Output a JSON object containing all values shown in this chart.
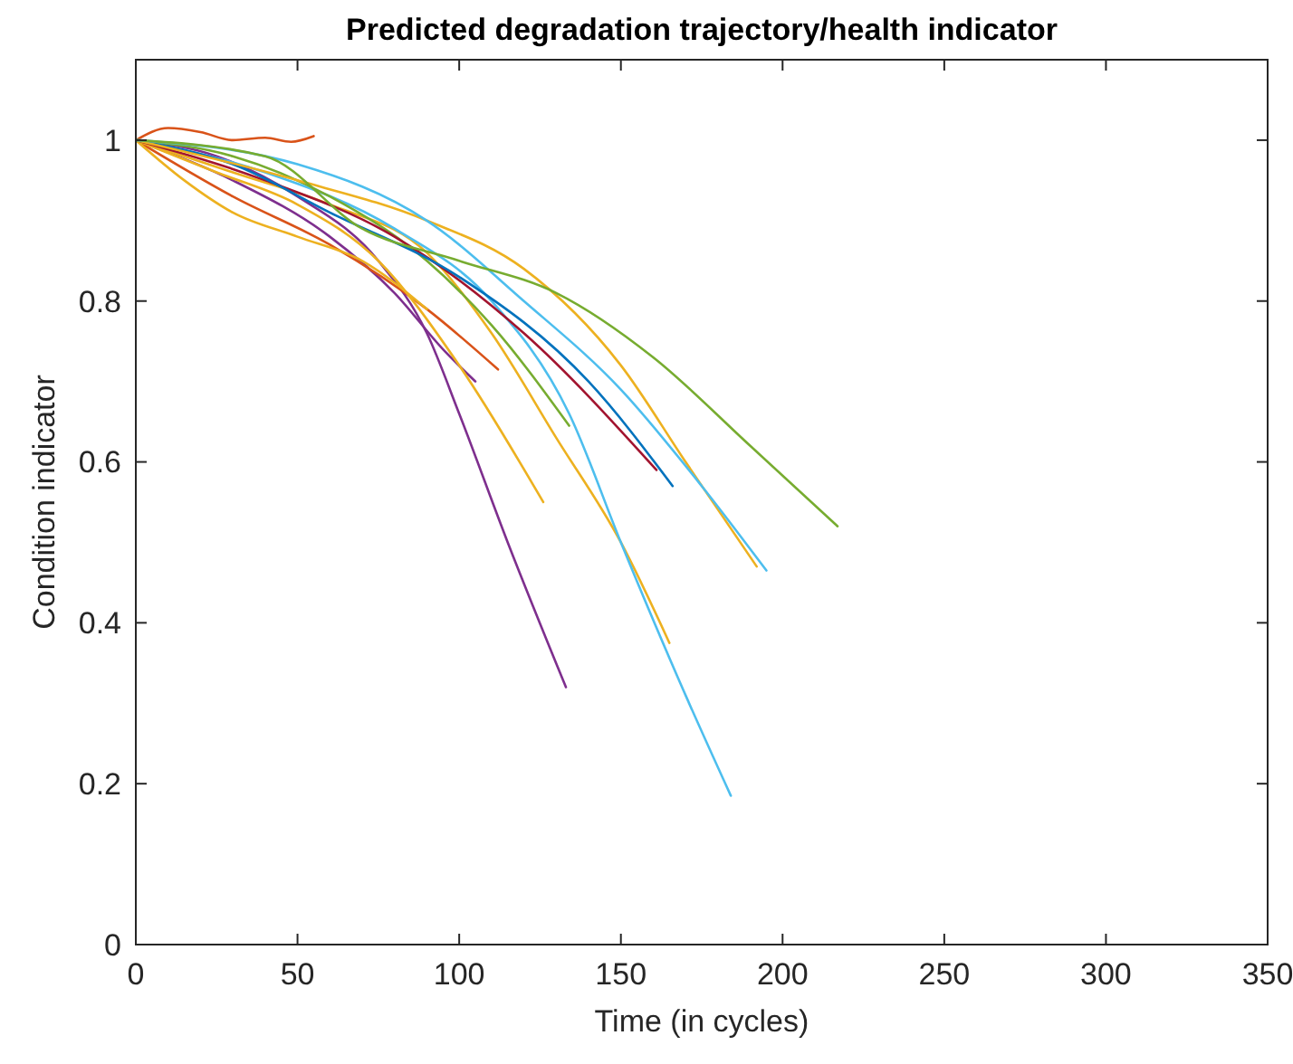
{
  "chart_data": {
    "type": "line",
    "title": "Predicted degradation trajectory/health indicator",
    "xlabel": "Time (in cycles)",
    "ylabel": "Condition indicator",
    "xlim": [
      0,
      350
    ],
    "xticks": [
      0,
      50,
      100,
      150,
      200,
      250,
      300,
      350
    ],
    "ylim": [
      0,
      1.1
    ],
    "yticks": [
      0,
      0.2,
      0.4,
      0.6,
      0.8,
      1
    ],
    "grid": false,
    "line_style": "solid",
    "series": [
      {
        "color": "#d95319",
        "x": [
          0,
          10,
          20,
          30,
          40,
          48,
          55
        ],
        "values": [
          1,
          1.015,
          1.01,
          1.0,
          1.003,
          0.998,
          1.005
        ]
      },
      {
        "color": "#7e2f8e",
        "x": [
          0,
          25,
          50,
          75,
          90,
          100,
          115,
          133
        ],
        "values": [
          1,
          0.98,
          0.93,
          0.85,
          0.76,
          0.66,
          0.5,
          0.32
        ]
      },
      {
        "color": "#7e2f8e",
        "x": [
          0,
          30,
          60,
          80,
          95,
          105
        ],
        "values": [
          1,
          0.95,
          0.88,
          0.81,
          0.74,
          0.7
        ]
      },
      {
        "color": "#d95319",
        "x": [
          0,
          30,
          60,
          90,
          112
        ],
        "values": [
          1,
          0.93,
          0.87,
          0.79,
          0.715
        ]
      },
      {
        "color": "#edb120",
        "x": [
          0,
          25,
          50,
          75,
          100,
          126
        ],
        "values": [
          1,
          0.96,
          0.92,
          0.85,
          0.72,
          0.55
        ]
      },
      {
        "color": "#edb120",
        "x": [
          0,
          15,
          30,
          50,
          70,
          90
        ],
        "values": [
          1,
          0.95,
          0.91,
          0.88,
          0.85,
          0.79
        ]
      },
      {
        "color": "#edb120",
        "x": [
          0,
          30,
          60,
          90,
          110,
          130,
          150,
          165
        ],
        "values": [
          1,
          0.96,
          0.92,
          0.86,
          0.76,
          0.63,
          0.5,
          0.375
        ]
      },
      {
        "color": "#4dbeee",
        "x": [
          0,
          40,
          80,
          110,
          134,
          150,
          170,
          184
        ],
        "values": [
          1,
          0.96,
          0.89,
          0.8,
          0.66,
          0.5,
          0.31,
          0.185
        ]
      },
      {
        "color": "#77ac30",
        "x": [
          0,
          30,
          60,
          90,
          110,
          134
        ],
        "values": [
          1,
          0.98,
          0.93,
          0.85,
          0.77,
          0.645
        ]
      },
      {
        "color": "#a2142f",
        "x": [
          0,
          40,
          80,
          120,
          161
        ],
        "values": [
          1,
          0.95,
          0.88,
          0.76,
          0.59
        ]
      },
      {
        "color": "#0072bd",
        "x": [
          0,
          30,
          60,
          100,
          140,
          166
        ],
        "values": [
          1,
          0.97,
          0.91,
          0.83,
          0.7,
          0.57
        ]
      },
      {
        "color": "#edb120",
        "x": [
          0,
          50,
          90,
          120,
          150,
          170,
          192
        ],
        "values": [
          1,
          0.95,
          0.9,
          0.84,
          0.72,
          0.6,
          0.47
        ]
      },
      {
        "color": "#4dbeee",
        "x": [
          0,
          50,
          90,
          120,
          150,
          175,
          195
        ],
        "values": [
          1,
          0.97,
          0.9,
          0.8,
          0.69,
          0.57,
          0.465
        ]
      },
      {
        "color": "#77ac30",
        "x": [
          0,
          40,
          70,
          100,
          130,
          160,
          190,
          217
        ],
        "values": [
          1,
          0.98,
          0.89,
          0.85,
          0.81,
          0.73,
          0.62,
          0.52
        ]
      }
    ]
  }
}
